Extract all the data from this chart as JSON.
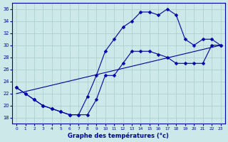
{
  "title": "Graphe des températures (°c)",
  "bg_color": "#cce8e8",
  "grid_color": "#aacccc",
  "line_color": "#0000aa",
  "xlim": [
    -0.5,
    23.5
  ],
  "ylim": [
    17,
    37
  ],
  "xticks": [
    0,
    1,
    2,
    3,
    4,
    5,
    6,
    7,
    8,
    9,
    10,
    11,
    12,
    13,
    14,
    15,
    16,
    17,
    18,
    19,
    20,
    21,
    22,
    23
  ],
  "yticks": [
    18,
    20,
    22,
    24,
    26,
    28,
    30,
    32,
    34,
    36
  ],
  "curve1_x": [
    0,
    1,
    2,
    3,
    4,
    5,
    6,
    7,
    8,
    9,
    10,
    11,
    12,
    13,
    14,
    15,
    16,
    17,
    18,
    19,
    20,
    21,
    22,
    23
  ],
  "curve1_y": [
    23,
    22,
    21,
    20,
    19.5,
    19,
    18.5,
    18.5,
    18.5,
    21,
    25,
    25,
    27,
    29,
    29,
    29,
    28.5,
    28,
    27,
    27,
    27,
    27,
    30,
    30
  ],
  "curve2_x": [
    0,
    1,
    2,
    3,
    4,
    5,
    6,
    7,
    8,
    9,
    10,
    11,
    12,
    13,
    14,
    15,
    16,
    17,
    18,
    19,
    20,
    21,
    22,
    23
  ],
  "curve2_y": [
    23,
    22,
    21,
    20,
    19.5,
    19,
    18.5,
    18.5,
    21.5,
    25,
    29,
    31,
    33,
    34,
    35.5,
    35.5,
    35,
    36,
    35,
    31,
    30,
    31,
    31,
    30
  ],
  "line3_x": [
    0,
    23
  ],
  "line3_y": [
    22,
    30
  ],
  "marker_size": 2.5
}
